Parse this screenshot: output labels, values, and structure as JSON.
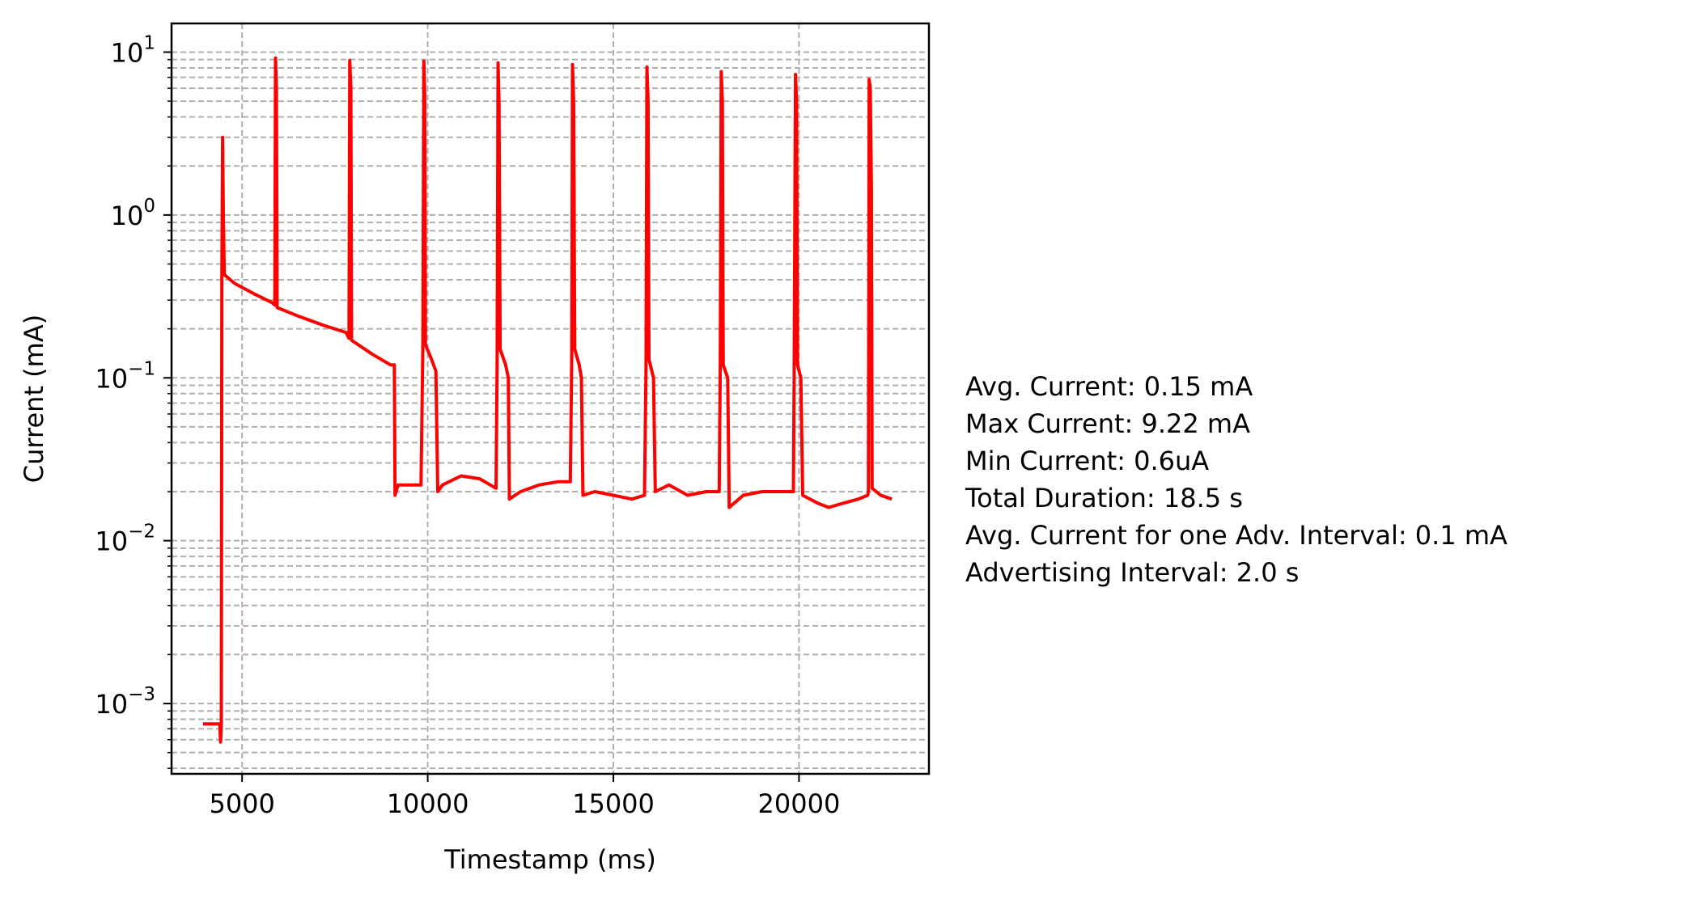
{
  "chart_data": {
    "type": "line",
    "xlabel": "Timestamp (ms)",
    "ylabel": "Current (mA)",
    "y_scale": "log",
    "grid": true,
    "xlim": [
      3100,
      23500
    ],
    "ylim": [
      0.00037,
      15
    ],
    "x_ticks": [
      5000,
      10000,
      15000,
      20000
    ],
    "x_tick_labels": [
      "5000",
      "10000",
      "15000",
      "20000"
    ],
    "y_ticks": [
      {
        "value": 0.001,
        "base": "10",
        "exp": "−3"
      },
      {
        "value": 0.01,
        "base": "10",
        "exp": "−2"
      },
      {
        "value": 0.1,
        "base": "10",
        "exp": "−1"
      },
      {
        "value": 1,
        "base": "10",
        "exp": "0"
      },
      {
        "value": 10,
        "base": "10",
        "exp": "1"
      }
    ],
    "series_color": "#ff0000",
    "grid_color": "#b0b0b0",
    "series": [
      {
        "points": [
          [
            3950,
            0.00075
          ],
          [
            4400,
            0.00075
          ],
          [
            4420,
            0.00058
          ],
          [
            4440,
            0.00075
          ],
          [
            4455,
            0.42
          ],
          [
            4475,
            3.0
          ],
          [
            4495,
            1.0
          ],
          [
            4520,
            0.43
          ],
          [
            4800,
            0.38
          ],
          [
            5300,
            0.33
          ],
          [
            5800,
            0.29
          ],
          [
            5880,
            0.28
          ],
          [
            5900,
            9.2
          ],
          [
            5925,
            6.0
          ],
          [
            5945,
            0.27
          ],
          [
            6500,
            0.24
          ],
          [
            7200,
            0.21
          ],
          [
            7800,
            0.19
          ],
          [
            7880,
            0.175
          ],
          [
            7900,
            8.9
          ],
          [
            7930,
            6.0
          ],
          [
            7950,
            0.17
          ],
          [
            8500,
            0.14
          ],
          [
            9000,
            0.12
          ],
          [
            9100,
            0.12
          ],
          [
            9120,
            0.019
          ],
          [
            9200,
            0.022
          ],
          [
            9600,
            0.022
          ],
          [
            9820,
            0.022
          ],
          [
            9870,
            0.16
          ],
          [
            9895,
            8.8
          ],
          [
            9920,
            5.5
          ],
          [
            9940,
            0.16
          ],
          [
            10100,
            0.13
          ],
          [
            10220,
            0.11
          ],
          [
            10270,
            0.02
          ],
          [
            10400,
            0.022
          ],
          [
            10900,
            0.025
          ],
          [
            11400,
            0.024
          ],
          [
            11840,
            0.021
          ],
          [
            11870,
            0.13
          ],
          [
            11895,
            8.6
          ],
          [
            11920,
            5.0
          ],
          [
            11950,
            0.15
          ],
          [
            12100,
            0.12
          ],
          [
            12170,
            0.1
          ],
          [
            12200,
            0.018
          ],
          [
            12500,
            0.02
          ],
          [
            13000,
            0.022
          ],
          [
            13500,
            0.023
          ],
          [
            13840,
            0.023
          ],
          [
            13880,
            0.14
          ],
          [
            13900,
            8.4
          ],
          [
            13930,
            5.0
          ],
          [
            13960,
            0.15
          ],
          [
            14080,
            0.12
          ],
          [
            14140,
            0.1
          ],
          [
            14180,
            0.019
          ],
          [
            14500,
            0.02
          ],
          [
            15000,
            0.019
          ],
          [
            15500,
            0.018
          ],
          [
            15840,
            0.019
          ],
          [
            15880,
            0.12
          ],
          [
            15905,
            8.1
          ],
          [
            15935,
            5.0
          ],
          [
            15960,
            0.13
          ],
          [
            16080,
            0.1
          ],
          [
            16130,
            0.02
          ],
          [
            16500,
            0.022
          ],
          [
            17000,
            0.019
          ],
          [
            17500,
            0.02
          ],
          [
            17850,
            0.02
          ],
          [
            17880,
            0.12
          ],
          [
            17905,
            7.6
          ],
          [
            17935,
            5.0
          ],
          [
            17960,
            0.12
          ],
          [
            18080,
            0.1
          ],
          [
            18120,
            0.016
          ],
          [
            18500,
            0.019
          ],
          [
            19000,
            0.02
          ],
          [
            19500,
            0.02
          ],
          [
            19850,
            0.02
          ],
          [
            19870,
            0.1
          ],
          [
            19905,
            7.3
          ],
          [
            19935,
            5.0
          ],
          [
            19960,
            0.12
          ],
          [
            20050,
            0.1
          ],
          [
            20100,
            0.019
          ],
          [
            20500,
            0.017
          ],
          [
            20800,
            0.016
          ],
          [
            21200,
            0.017
          ],
          [
            21600,
            0.018
          ],
          [
            21850,
            0.019
          ],
          [
            21870,
            0.02
          ],
          [
            21890,
            6.8
          ],
          [
            21920,
            6.0
          ],
          [
            21950,
            1.5
          ],
          [
            21970,
            0.021
          ],
          [
            22200,
            0.019
          ],
          [
            22500,
            0.018
          ]
        ]
      }
    ],
    "annotations": [
      "Avg. Current: 0.15 mA",
      "Max Current: 9.22 mA",
      "Min Current: 0.6uA",
      "Total Duration: 18.5 s",
      "Avg. Current for one Adv. Interval: 0.1 mA",
      "Advertising Interval: 2.0 s"
    ]
  }
}
